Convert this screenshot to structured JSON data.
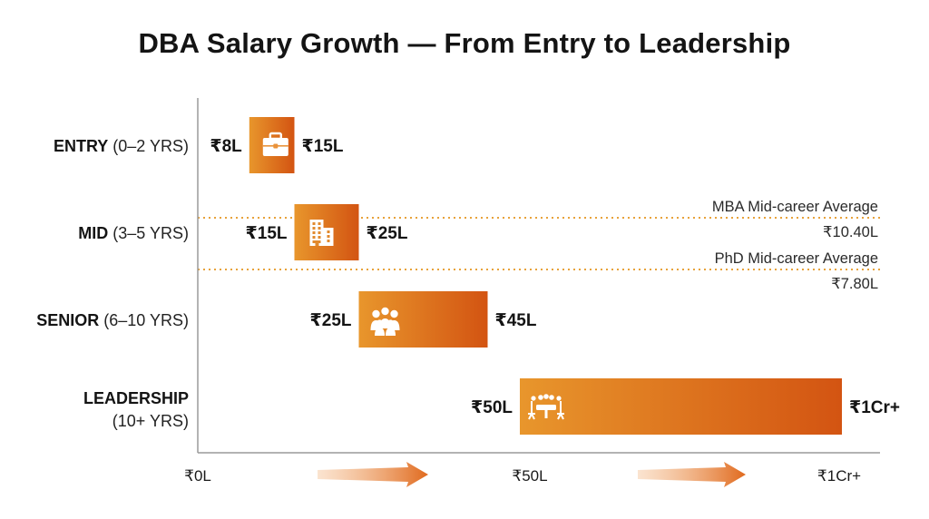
{
  "chart_data": {
    "type": "bar",
    "subtype": "floating-range",
    "title": "DBA Salary Growth — From Entry to Leadership",
    "categories": [
      {
        "bold": "ENTRY",
        "rest": "(0–2 YRS)"
      },
      {
        "bold": "MID",
        "rest": "(3–5 YRS)"
      },
      {
        "bold": "SENIOR",
        "rest": "(6–10 YRS)"
      },
      {
        "bold": "LEADERSHIP",
        "rest": "(10+ YRS)"
      }
    ],
    "ranges": [
      {
        "start": 8,
        "end": 15,
        "start_label": "₹8L",
        "end_label": "₹15L",
        "icon": "briefcase-icon"
      },
      {
        "start": 15,
        "end": 25,
        "start_label": "₹15L",
        "end_label": "₹25L",
        "icon": "office-building-icon"
      },
      {
        "start": 25,
        "end": 45,
        "start_label": "₹25L",
        "end_label": "₹45L",
        "icon": "team-icon"
      },
      {
        "start": 50,
        "end": 100,
        "start_label": "₹50L",
        "end_label": "₹1Cr+",
        "icon": "boardroom-meeting-icon"
      }
    ],
    "x_unit": "lakh INR",
    "xlim": [
      0,
      100
    ],
    "xticks": [
      {
        "value": 0,
        "label": "₹0L"
      },
      {
        "value": 50,
        "label": "₹50L"
      },
      {
        "value": 100,
        "label": "₹1Cr+"
      }
    ],
    "reference_lines": [
      {
        "label": "MBA Mid-career Average",
        "value_label": "₹10.40L"
      },
      {
        "label": "PhD Mid-career Average",
        "value_label": "₹7.80L"
      }
    ],
    "grid": false,
    "legend": "none",
    "colors": {
      "bar_start": "#E8962C",
      "bar_end": "#D35412",
      "ref_line": "#E8A23A",
      "axis": "#9a9a9a",
      "arrow": "#E06A1E"
    }
  }
}
